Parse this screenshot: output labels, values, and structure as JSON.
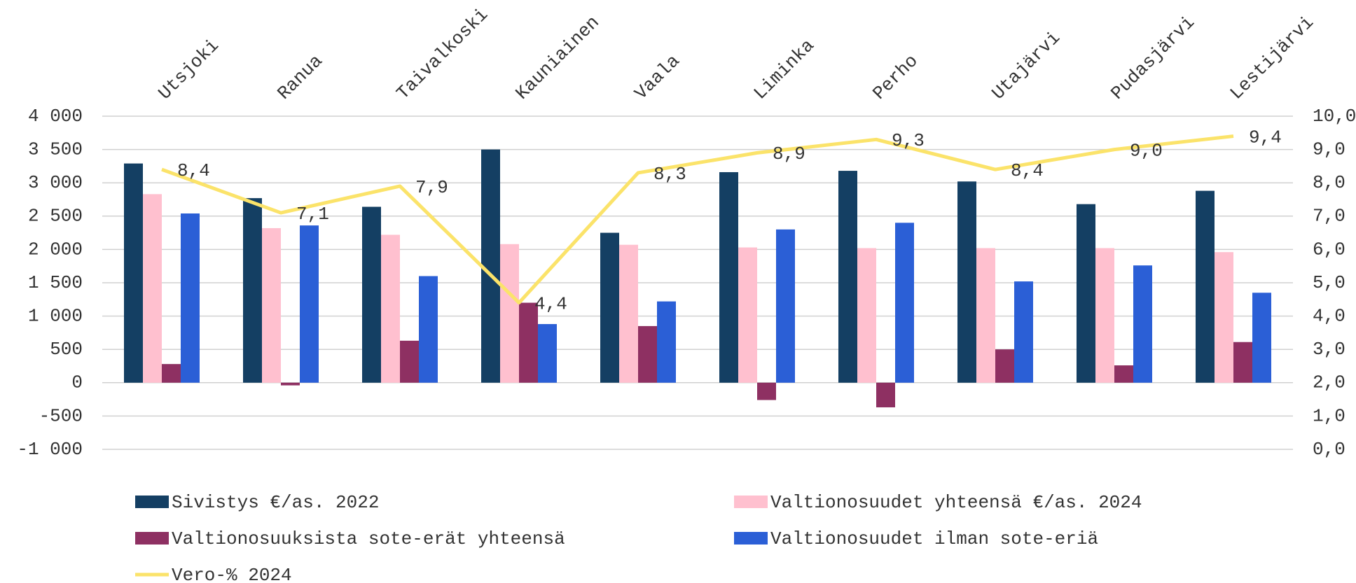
{
  "chart_data": {
    "type": "bar",
    "categories": [
      "Utsjoki",
      "Ranua",
      "Taivalkoski",
      "Kauniainen",
      "Vaala",
      "Liminka",
      "Perho",
      "Utajärvi",
      "Pudasjärvi",
      "Lestijärvi"
    ],
    "series": [
      {
        "name": "Sivistys €/as. 2022",
        "color": "#143f63",
        "values": [
          3290,
          2770,
          2640,
          3500,
          2250,
          3160,
          3180,
          3020,
          2680,
          2880
        ]
      },
      {
        "name": "Valtionosuudet yhteensä €/as. 2024",
        "color": "#ffc0cf",
        "values": [
          2830,
          2320,
          2220,
          2080,
          2070,
          2030,
          2020,
          2020,
          2020,
          1960
        ]
      },
      {
        "name": "Valtionosuuksista sote-erät yhteensä",
        "color": "#8e3062",
        "values": [
          280,
          -40,
          630,
          1200,
          850,
          -260,
          -370,
          500,
          260,
          610
        ]
      },
      {
        "name": "Valtionosuudet ilman sote-eriä",
        "color": "#2b5fd6",
        "values": [
          2540,
          2360,
          1600,
          880,
          1220,
          2300,
          2400,
          1520,
          1760,
          1350
        ]
      },
      {
        "name": "Vero-% 2024",
        "color": "#fbe36a",
        "type": "line",
        "axis": "y2",
        "values": [
          8.4,
          7.1,
          7.9,
          4.4,
          8.3,
          8.9,
          9.3,
          8.4,
          9.0,
          9.4
        ],
        "value_labels": [
          "8,4",
          "7,1",
          "7,9",
          "4,4",
          "8,3",
          "8,9",
          "9,3",
          "8,4",
          "9,0",
          "9,4"
        ]
      }
    ],
    "ylim": [
      -1000,
      4000
    ],
    "yticks": [
      {
        "value": -1000,
        "label": "-1 000"
      },
      -500,
      0,
      500,
      {
        "value": 1000,
        "label": "1 000"
      },
      {
        "value": 1500,
        "label": "1 500"
      },
      {
        "value": 2000,
        "label": "2 000"
      },
      {
        "value": 2500,
        "label": "2 500"
      },
      {
        "value": 3000,
        "label": "3 000"
      },
      {
        "value": 3500,
        "label": "3 500"
      },
      {
        "value": 4000,
        "label": "4 000"
      }
    ],
    "y2lim": [
      0,
      10
    ],
    "y2ticks": [
      {
        "value": 0,
        "label": "0,0"
      },
      {
        "value": 1,
        "label": "1,0"
      },
      {
        "value": 2,
        "label": "2,0"
      },
      {
        "value": 3,
        "label": "3,0"
      },
      {
        "value": 4,
        "label": "4,0"
      },
      {
        "value": 5,
        "label": "5,0"
      },
      {
        "value": 6,
        "label": "6,0"
      },
      {
        "value": 7,
        "label": "7,0"
      },
      {
        "value": 8,
        "label": "8,0"
      },
      {
        "value": 9,
        "label": "9,0"
      },
      {
        "value": 10,
        "label": "10,0"
      }
    ],
    "grid": true,
    "legend": "bottom"
  }
}
